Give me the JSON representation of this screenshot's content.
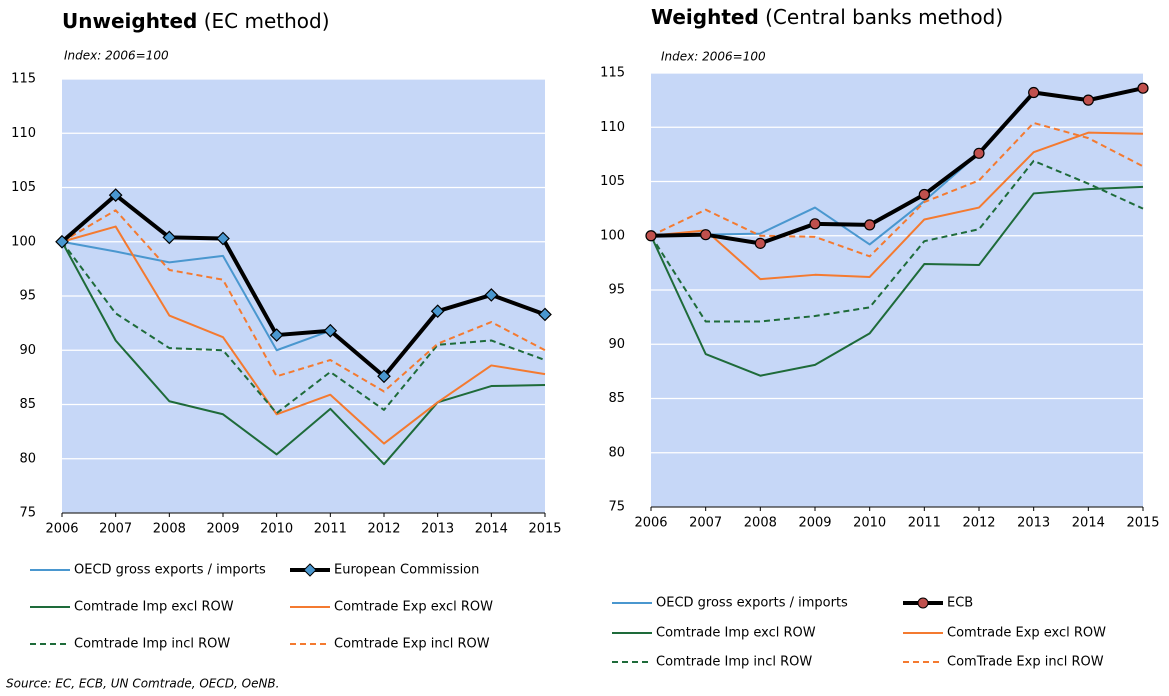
{
  "chart_data": [
    {
      "type": "line",
      "title_bold": "Unweighted",
      "title_rest": "(EC method)",
      "subtitle": "Index: 2006=100",
      "x": [
        2006,
        2007,
        2008,
        2009,
        2010,
        2011,
        2012,
        2013,
        2014,
        2015
      ],
      "xlim": [
        2006,
        2015
      ],
      "xticks": [
        2006,
        2007,
        2008,
        2009,
        2010,
        2011,
        2012,
        2013,
        2014,
        2015
      ],
      "ylim": [
        75,
        115
      ],
      "yticks": [
        75,
        80,
        85,
        90,
        95,
        100,
        105,
        110,
        115
      ],
      "grid": true,
      "series": [
        {
          "name": "OECD gross exports / imports",
          "color": "#4a97cf",
          "width": 2,
          "dash": false,
          "values": [
            100,
            99.1,
            98.1,
            98.7,
            90.0,
            91.8,
            87.6,
            93.6,
            95.1,
            93.3
          ]
        },
        {
          "name": "European Commission",
          "color": "#000000",
          "width": 4,
          "dash": false,
          "marker": "diamond",
          "marker_color": "#4a97cf",
          "values": [
            100,
            104.3,
            100.4,
            100.3,
            91.4,
            91.8,
            87.6,
            93.6,
            95.1,
            93.3
          ]
        },
        {
          "name": "Comtrade Imp excl ROW",
          "color": "#1e6b3a",
          "width": 2,
          "dash": false,
          "values": [
            100,
            90.9,
            85.3,
            84.1,
            80.4,
            84.6,
            79.5,
            85.2,
            86.7,
            86.8
          ]
        },
        {
          "name": "Comtrade Exp excl ROW",
          "color": "#f47a30",
          "width": 2,
          "dash": false,
          "values": [
            100,
            101.4,
            93.2,
            91.2,
            84.1,
            85.9,
            81.4,
            85.2,
            88.6,
            87.8
          ]
        },
        {
          "name": "Comtrade Imp incl ROW",
          "color": "#1e6b3a",
          "width": 2,
          "dash": true,
          "values": [
            100,
            93.4,
            90.2,
            90.0,
            84.2,
            88.0,
            84.5,
            90.5,
            90.9,
            89.1
          ]
        },
        {
          "name": "Comtrade Exp incl ROW",
          "color": "#f47a30",
          "width": 2,
          "dash": true,
          "values": [
            100,
            102.9,
            97.4,
            96.5,
            87.6,
            89.1,
            86.2,
            90.6,
            92.6,
            90.0
          ]
        }
      ]
    },
    {
      "type": "line",
      "title_bold": "Weighted",
      "title_rest": "(Central banks method)",
      "subtitle": "Index: 2006=100",
      "x": [
        2006,
        2007,
        2008,
        2009,
        2010,
        2011,
        2012,
        2013,
        2014,
        2015
      ],
      "xlim": [
        2006,
        2015
      ],
      "xticks": [
        2006,
        2007,
        2008,
        2009,
        2010,
        2011,
        2012,
        2013,
        2014,
        2015
      ],
      "ylim": [
        75,
        115
      ],
      "yticks": [
        75,
        80,
        85,
        90,
        95,
        100,
        105,
        110,
        115
      ],
      "grid": true,
      "series": [
        {
          "name": "OECD gross exports / imports",
          "color": "#4a97cf",
          "width": 2,
          "dash": false,
          "values": [
            100,
            100.1,
            100.2,
            102.6,
            99.2,
            103.2,
            107.6,
            113.2,
            112.5,
            113.6
          ]
        },
        {
          "name": "ECB",
          "color": "#000000",
          "width": 4,
          "dash": false,
          "marker": "circle",
          "marker_color": "#c0504d",
          "values": [
            100,
            100.1,
            99.3,
            101.1,
            101.0,
            103.8,
            107.6,
            113.2,
            112.5,
            113.6
          ]
        },
        {
          "name": "Comtrade Imp excl ROW",
          "color": "#1e6b3a",
          "width": 2,
          "dash": false,
          "values": [
            100,
            89.1,
            87.1,
            88.1,
            91.0,
            97.4,
            97.3,
            103.9,
            104.3,
            104.5
          ]
        },
        {
          "name": "Comtrade Exp excl ROW",
          "color": "#f47a30",
          "width": 2,
          "dash": false,
          "values": [
            100,
            100.5,
            96.0,
            96.4,
            96.2,
            101.5,
            102.6,
            107.7,
            109.5,
            109.4
          ]
        },
        {
          "name": "Comtrade Imp incl ROW",
          "color": "#1e6b3a",
          "width": 2,
          "dash": true,
          "values": [
            100,
            92.1,
            92.1,
            92.6,
            93.4,
            99.5,
            100.6,
            106.9,
            104.8,
            102.5
          ]
        },
        {
          "name": "ComTrade Exp incl ROW",
          "color": "#f47a30",
          "width": 2,
          "dash": true,
          "values": [
            100,
            102.4,
            100.0,
            99.9,
            98.1,
            103.1,
            105.1,
            110.4,
            109.0,
            106.4
          ]
        }
      ]
    }
  ],
  "source": "Source: EC, ECB, UN Comtrade, OECD, OeNB."
}
